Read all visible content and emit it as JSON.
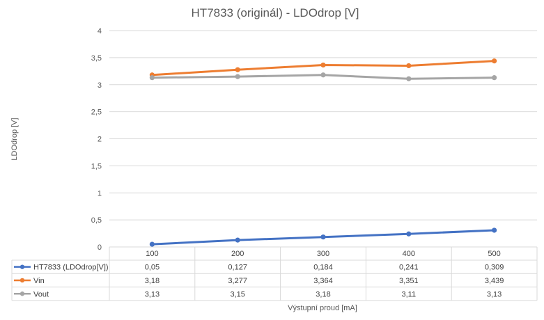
{
  "chart_data": {
    "type": "line",
    "title": "HT7833 (originál) - LDOdrop [V]",
    "xlabel": "Výstupní proud [mA]",
    "ylabel": "LDOdrop [V]",
    "categories": [
      "100",
      "200",
      "300",
      "400",
      "500"
    ],
    "ylim": [
      0,
      4
    ],
    "yticks": [
      "0",
      "0,5",
      "1",
      "1,5",
      "2",
      "2,5",
      "3",
      "3,5",
      "4"
    ],
    "ytick_values": [
      0,
      0.5,
      1,
      1.5,
      2,
      2.5,
      3,
      3.5,
      4
    ],
    "grid": true,
    "legend": "data-table",
    "series": [
      {
        "name": "HT7833 (LDOdrop[V])",
        "color": "#4472c4",
        "values": [
          0.05,
          0.127,
          0.184,
          0.241,
          0.309
        ],
        "labels": [
          "0,05",
          "0,127",
          "0,184",
          "0,241",
          "0,309"
        ]
      },
      {
        "name": "Vin",
        "color": "#ed7d31",
        "values": [
          3.18,
          3.277,
          3.364,
          3.351,
          3.439
        ],
        "labels": [
          "3,18",
          "3,277",
          "3,364",
          "3,351",
          "3,439"
        ]
      },
      {
        "name": "Vout",
        "color": "#a5a5a5",
        "values": [
          3.13,
          3.15,
          3.18,
          3.11,
          3.13
        ],
        "labels": [
          "3,13",
          "3,15",
          "3,18",
          "3,11",
          "3,13"
        ]
      }
    ]
  }
}
